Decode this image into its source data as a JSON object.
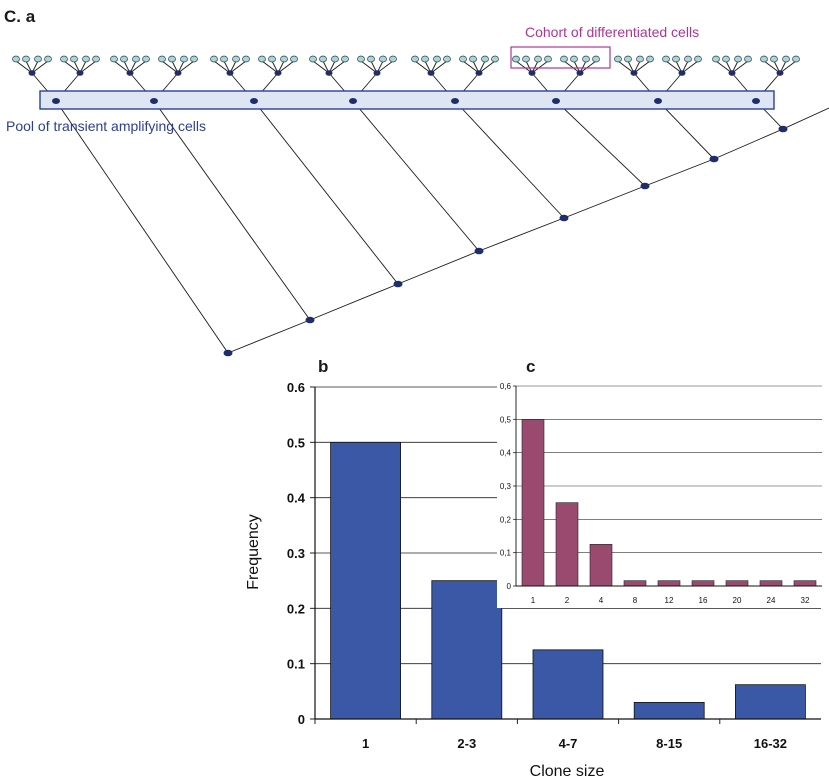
{
  "panel_labels": {
    "ca": "C. a",
    "b": "b",
    "c": "c"
  },
  "lineage": {
    "cohort_label": "Cohort of differentiated cells",
    "pool_label": "Pool of transient amplifying cells",
    "colors": {
      "cohort": "#b0329a",
      "pool": "#2a3f9a",
      "pool_fill": "#dfe6f3",
      "node": "#1f2d6b",
      "leaf": "#a9d6d0",
      "line": "#1a1a1a"
    }
  },
  "chart_data": [
    {
      "id": "b",
      "type": "bar",
      "categories": [
        "1",
        "2-3",
        "4-7",
        "8-15",
        "16-32"
      ],
      "values": [
        0.5,
        0.25,
        0.125,
        0.03,
        0.062
      ],
      "xlabel": "Clone size",
      "ylabel": "Frequency",
      "ylim": [
        0,
        0.6
      ],
      "yticks": [
        "0",
        "0.1",
        "0.2",
        "0.3",
        "0.4",
        "0.5",
        "0.6"
      ],
      "grid": true,
      "color": "#3a58a6"
    },
    {
      "id": "c",
      "type": "bar",
      "categories": [
        "1",
        "2",
        "4",
        "8",
        "12",
        "16",
        "20",
        "24",
        "32"
      ],
      "values": [
        0.5,
        0.25,
        0.125,
        0.016,
        0.016,
        0.016,
        0.016,
        0.016,
        0.016
      ],
      "ylim": [
        0,
        0.6
      ],
      "yticks": [
        "0",
        "0,1",
        "0,2",
        "0,3",
        "0,4",
        "0,5",
        "0,6"
      ],
      "grid": true,
      "color": "#9b4a6f"
    }
  ]
}
